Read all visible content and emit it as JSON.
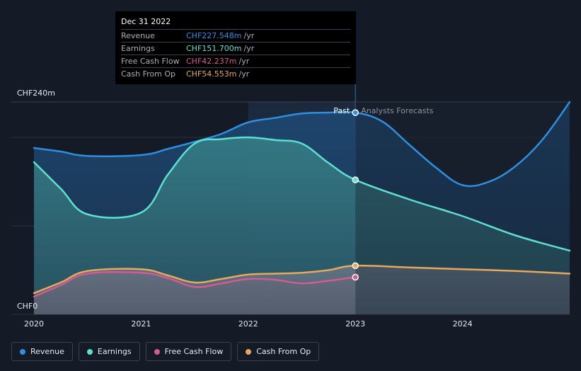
{
  "tooltip": {
    "date": "Dec 31 2022",
    "rows": [
      {
        "label": "Revenue",
        "value": "CHF227.548m",
        "unit": "/yr",
        "color": "#2e8fe0"
      },
      {
        "label": "Earnings",
        "value": "CHF151.700m",
        "unit": "/yr",
        "color": "#5ee0d0"
      },
      {
        "label": "Free Cash Flow",
        "value": "CHF42.237m",
        "unit": "/yr",
        "color": "#d45b8f"
      },
      {
        "label": "Cash From Op",
        "value": "CHF54.553m",
        "unit": "/yr",
        "color": "#e8a85c"
      }
    ]
  },
  "legend": [
    {
      "label": "Revenue",
      "color": "#2e8fe0"
    },
    {
      "label": "Earnings",
      "color": "#5ee0d0"
    },
    {
      "label": "Free Cash Flow",
      "color": "#d45b8f"
    },
    {
      "label": "Cash From Op",
      "color": "#e8a85c"
    }
  ],
  "chart_data": {
    "type": "line",
    "title": "",
    "xlabel": "",
    "ylabel": "",
    "y_axis_top_label": "CHF240m",
    "y_axis_bottom_label": "CHF0",
    "ylim": [
      0,
      240
    ],
    "xlim": [
      2020,
      2025
    ],
    "x_ticks": [
      2020,
      2021,
      2022,
      2023,
      2024
    ],
    "x_tick_labels": [
      "2020",
      "2021",
      "2022",
      "2023",
      "2024"
    ],
    "divider_x": 2023,
    "past_label": "Past",
    "forecast_label": "Analysts Forecasts",
    "series": [
      {
        "name": "Revenue",
        "color": "#2e8fe0",
        "x": [
          2020,
          2020.25,
          2020.5,
          2021,
          2021.25,
          2021.5,
          2021.75,
          2022,
          2022.25,
          2022.5,
          2022.75,
          2023,
          2023.25,
          2023.5,
          2023.75,
          2024,
          2024.25,
          2024.5,
          2024.75,
          2025
        ],
        "values": [
          188,
          184,
          179,
          180,
          187,
          195,
          204,
          217,
          222,
          227,
          228,
          228,
          218,
          192,
          166,
          146,
          150,
          168,
          198,
          240
        ]
      },
      {
        "name": "Earnings",
        "color": "#5ee0d0",
        "x": [
          2020,
          2020.25,
          2020.5,
          2021,
          2021.25,
          2021.5,
          2021.75,
          2022,
          2022.25,
          2022.5,
          2022.75,
          2023,
          2023.5,
          2024,
          2024.5,
          2025
        ],
        "values": [
          172,
          142,
          113,
          115,
          158,
          193,
          198,
          200,
          197,
          193,
          171,
          152,
          130,
          111,
          89,
          72
        ]
      },
      {
        "name": "Free Cash Flow",
        "color": "#d45b8f",
        "x": [
          2020,
          2020.25,
          2020.5,
          2021,
          2021.25,
          2021.5,
          2021.75,
          2022,
          2022.25,
          2022.5,
          2022.75,
          2023
        ],
        "values": [
          20,
          33,
          46,
          47,
          41,
          31,
          35,
          40,
          39,
          35,
          38,
          42
        ]
      },
      {
        "name": "Cash From Op",
        "color": "#e8a85c",
        "x": [
          2020,
          2020.25,
          2020.5,
          2021,
          2021.25,
          2021.5,
          2021.75,
          2022,
          2022.25,
          2022.5,
          2022.75,
          2023,
          2023.5,
          2024,
          2024.5,
          2025
        ],
        "values": [
          24,
          36,
          49,
          51,
          44,
          36,
          40,
          45,
          46,
          47,
          50,
          55,
          53,
          51,
          49,
          46
        ]
      }
    ]
  }
}
